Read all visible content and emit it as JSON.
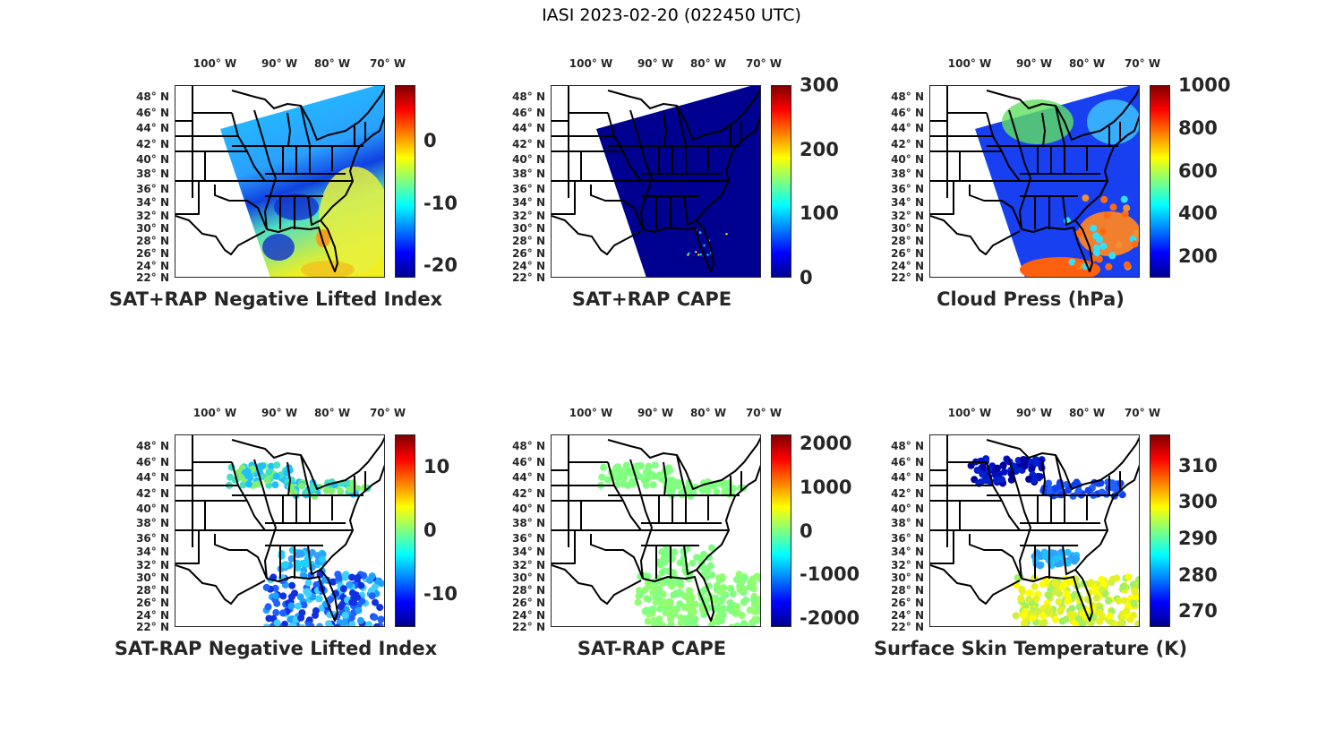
{
  "figure_title": "IASI 2023-02-20 (022450 UTC)",
  "lon_labels": [
    "100° W",
    "90° W",
    "80° W",
    "70° W"
  ],
  "lat_labels": [
    "48° N",
    "46° N",
    "44° N",
    "42° N",
    "40° N",
    "38° N",
    "36° N",
    "34° N",
    "32° N",
    "30° N",
    "28° N",
    "26° N",
    "24° N",
    "22° N"
  ],
  "colormap": [
    "#00008f",
    "#0000ff",
    "#00ffff",
    "#ffff00",
    "#ff0000",
    "#800000"
  ],
  "panels": [
    {
      "title": "SAT+RAP Negative Lifted Index",
      "colorbar": {
        "min": -22,
        "max": 9,
        "ticks": [
          "-20",
          "-10",
          "0"
        ]
      }
    },
    {
      "title": "SAT+RAP CAPE",
      "colorbar": {
        "min": 0,
        "max": 300,
        "ticks": [
          "0",
          "100",
          "200",
          "300"
        ]
      }
    },
    {
      "title": "Cloud Press (hPa)",
      "colorbar": {
        "min": 100,
        "max": 1000,
        "ticks": [
          "200",
          "400",
          "600",
          "800",
          "1000"
        ]
      }
    },
    {
      "title": "SAT-RAP Negative Lifted Index",
      "colorbar": {
        "min": -15.2,
        "max": 15,
        "ticks": [
          "-10",
          "0",
          "10"
        ]
      }
    },
    {
      "title": "SAT-RAP CAPE",
      "colorbar": {
        "min": -2200,
        "max": 2200,
        "ticks": [
          "-2000",
          "-1000",
          "0",
          "1000",
          "2000"
        ]
      }
    },
    {
      "title": "Surface Skin Temperature (K)",
      "colorbar": {
        "min": 265.6,
        "max": 318.6,
        "ticks": [
          "270",
          "280",
          "290",
          "300",
          "310"
        ]
      }
    }
  ]
}
